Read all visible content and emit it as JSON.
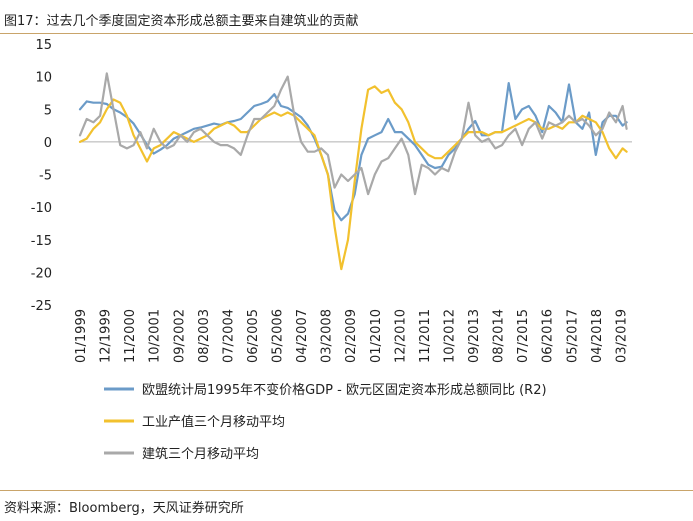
{
  "header": {
    "title": "图17：过去几个季度固定资本形成总额主要来自建筑业的贡献"
  },
  "footer": {
    "source": "资料来源：Bloomberg，天风证券研究所"
  },
  "colors": {
    "rule": "#c9a46a",
    "axis": "#b0b0b0"
  },
  "chart_data": {
    "type": "line",
    "title": "",
    "xlabel": "",
    "ylabel": "",
    "ylim": [
      -25,
      15
    ],
    "yticks": [
      15,
      10,
      5,
      0,
      -5,
      -10,
      -15,
      -20,
      -25
    ],
    "x_range": [
      1999.0,
      2019.6
    ],
    "xtick_labels": [
      "01/1999",
      "12/1999",
      "11/2000",
      "10/2001",
      "09/2002",
      "08/2003",
      "07/2004",
      "06/2005",
      "05/2006",
      "04/2007",
      "03/2008",
      "02/2009",
      "01/2010",
      "12/2010",
      "11/2011",
      "10/2012",
      "09/2013",
      "08/2014",
      "07/2015",
      "06/2016",
      "05/2017",
      "04/2018",
      "03/2019"
    ],
    "xtick_values": [
      1999.0,
      1999.917,
      2000.833,
      2001.75,
      2002.667,
      2003.583,
      2004.5,
      2005.417,
      2006.333,
      2007.25,
      2008.167,
      2009.083,
      2010.0,
      2010.917,
      2011.833,
      2012.75,
      2013.667,
      2014.583,
      2015.5,
      2016.417,
      2017.333,
      2018.25,
      2019.167
    ],
    "series": [
      {
        "name": "欧盟统计局1995年不变价格GDP - 欧元区固定资本形成总额同比 (R2)",
        "color": "#6b9bc8",
        "x": [
          1999.0,
          1999.25,
          1999.5,
          1999.75,
          2000.0,
          2000.25,
          2000.5,
          2000.75,
          2001.0,
          2001.25,
          2001.5,
          2001.75,
          2002.0,
          2002.25,
          2002.5,
          2002.75,
          2003.0,
          2003.25,
          2003.5,
          2003.75,
          2004.0,
          2004.25,
          2004.5,
          2004.75,
          2005.0,
          2005.25,
          2005.5,
          2005.75,
          2006.0,
          2006.25,
          2006.5,
          2006.75,
          2007.0,
          2007.25,
          2007.5,
          2007.75,
          2008.0,
          2008.25,
          2008.5,
          2008.75,
          2009.0,
          2009.25,
          2009.5,
          2009.75,
          2010.0,
          2010.25,
          2010.5,
          2010.75,
          2011.0,
          2011.25,
          2011.5,
          2011.75,
          2012.0,
          2012.25,
          2012.5,
          2012.75,
          2013.0,
          2013.25,
          2013.5,
          2013.75,
          2014.0,
          2014.25,
          2014.5,
          2014.75,
          2015.0,
          2015.25,
          2015.5,
          2015.75,
          2016.0,
          2016.25,
          2016.5,
          2016.75,
          2017.0,
          2017.25,
          2017.5,
          2017.75,
          2018.0,
          2018.25,
          2018.5,
          2018.75,
          2019.0,
          2019.25,
          2019.4
        ],
        "values": [
          5,
          6.2,
          6,
          6,
          5.8,
          5,
          4.5,
          3.8,
          2.8,
          1.2,
          -0.5,
          -1.8,
          -1.2,
          -0.5,
          0.5,
          1,
          1.5,
          2,
          2.2,
          2.5,
          2.8,
          2.6,
          3,
          3.2,
          3.5,
          4.5,
          5.5,
          5.8,
          6.2,
          7.3,
          5.5,
          5.2,
          4.5,
          3.8,
          2.5,
          0.5,
          -2,
          -5,
          -10.5,
          -12,
          -11,
          -8,
          -2,
          0.5,
          1,
          1.5,
          3.5,
          1.5,
          1.5,
          0.5,
          -0.5,
          -2,
          -3.5,
          -4,
          -3.8,
          -2,
          -1,
          0.5,
          2,
          3.2,
          1,
          1,
          1.5,
          1.5,
          9,
          3.5,
          5,
          5.5,
          4,
          1.5,
          5.5,
          4.5,
          3,
          8.8,
          3,
          2,
          4.5,
          -2,
          3,
          4,
          4,
          2.5,
          3
        ]
      },
      {
        "name": "工业产值三个月移动平均",
        "color": "#f2c12e",
        "x": [
          1999.0,
          1999.25,
          1999.5,
          1999.75,
          2000.0,
          2000.25,
          2000.5,
          2000.75,
          2001.0,
          2001.25,
          2001.5,
          2001.75,
          2002.0,
          2002.25,
          2002.5,
          2002.75,
          2003.0,
          2003.25,
          2003.5,
          2003.75,
          2004.0,
          2004.25,
          2004.5,
          2004.75,
          2005.0,
          2005.25,
          2005.5,
          2005.75,
          2006.0,
          2006.25,
          2006.5,
          2006.75,
          2007.0,
          2007.25,
          2007.5,
          2007.75,
          2008.0,
          2008.25,
          2008.5,
          2008.75,
          2009.0,
          2009.25,
          2009.5,
          2009.75,
          2010.0,
          2010.25,
          2010.5,
          2010.75,
          2011.0,
          2011.25,
          2011.5,
          2011.75,
          2012.0,
          2012.25,
          2012.5,
          2012.75,
          2013.0,
          2013.25,
          2013.5,
          2013.75,
          2014.0,
          2014.25,
          2014.5,
          2014.75,
          2015.0,
          2015.25,
          2015.5,
          2015.75,
          2016.0,
          2016.25,
          2016.5,
          2016.75,
          2017.0,
          2017.25,
          2017.5,
          2017.75,
          2018.0,
          2018.25,
          2018.5,
          2018.75,
          2019.0,
          2019.25,
          2019.4
        ],
        "values": [
          0,
          0.5,
          2,
          3,
          5,
          6.5,
          6,
          4,
          1,
          -1,
          -3,
          -1,
          -0.5,
          0.5,
          1.5,
          1,
          0.5,
          0,
          0.5,
          1,
          2,
          2.5,
          3,
          2.5,
          1.5,
          1.5,
          2.5,
          3.5,
          4,
          4.5,
          4,
          4.5,
          4,
          3,
          2,
          1,
          -2,
          -5,
          -13,
          -19.5,
          -15,
          -6,
          2,
          8,
          8.5,
          7.5,
          8,
          6,
          5,
          3,
          0,
          -1,
          -2,
          -2.5,
          -2.5,
          -1.5,
          -0.5,
          0.5,
          1.5,
          1.5,
          1.5,
          1,
          1.5,
          1.5,
          2,
          2.5,
          3,
          3.5,
          3,
          2,
          2,
          2.5,
          2,
          3,
          3,
          4,
          3.5,
          3,
          1.5,
          -1,
          -2.5,
          -1,
          -1.5
        ]
      },
      {
        "name": "建筑三个月移动平均",
        "color": "#a9a9a9",
        "x": [
          1999.0,
          1999.25,
          1999.5,
          1999.75,
          2000.0,
          2000.25,
          2000.5,
          2000.75,
          2001.0,
          2001.25,
          2001.5,
          2001.75,
          2002.0,
          2002.25,
          2002.5,
          2002.75,
          2003.0,
          2003.25,
          2003.5,
          2003.75,
          2004.0,
          2004.25,
          2004.5,
          2004.75,
          2005.0,
          2005.25,
          2005.5,
          2005.75,
          2006.0,
          2006.25,
          2006.5,
          2006.75,
          2007.0,
          2007.25,
          2007.5,
          2007.75,
          2008.0,
          2008.25,
          2008.5,
          2008.75,
          2009.0,
          2009.25,
          2009.5,
          2009.75,
          2010.0,
          2010.25,
          2010.5,
          2010.75,
          2011.0,
          2011.25,
          2011.5,
          2011.75,
          2012.0,
          2012.25,
          2012.5,
          2012.75,
          2013.0,
          2013.25,
          2013.5,
          2013.75,
          2014.0,
          2014.25,
          2014.5,
          2014.75,
          2015.0,
          2015.25,
          2015.5,
          2015.75,
          2016.0,
          2016.25,
          2016.5,
          2016.75,
          2017.0,
          2017.25,
          2017.5,
          2017.75,
          2018.0,
          2018.25,
          2018.5,
          2018.75,
          2019.0,
          2019.25,
          2019.4
        ],
        "values": [
          1,
          3.5,
          3,
          4,
          10.5,
          5,
          -0.5,
          -1,
          -0.5,
          1.5,
          -1,
          2,
          0,
          -1,
          -0.5,
          1,
          0,
          1.5,
          2,
          1,
          0,
          -0.5,
          -0.5,
          -1,
          -2,
          1,
          3.5,
          3.5,
          4.5,
          5.5,
          8,
          10,
          4,
          0,
          -1.5,
          -1.5,
          -1,
          -2,
          -7,
          -5,
          -6,
          -5,
          -4,
          -8,
          -5,
          -3,
          -2.5,
          -1,
          0.5,
          -2,
          -8,
          -3.5,
          -4,
          -5,
          -4,
          -4.5,
          -1.5,
          0.5,
          6,
          1,
          0,
          0.5,
          -1,
          -0.5,
          1,
          2,
          -0.5,
          2,
          3,
          0.5,
          3,
          2.5,
          3,
          4,
          3,
          3.5,
          2.5,
          1,
          2,
          4.5,
          3,
          5.5,
          2
        ]
      }
    ]
  }
}
